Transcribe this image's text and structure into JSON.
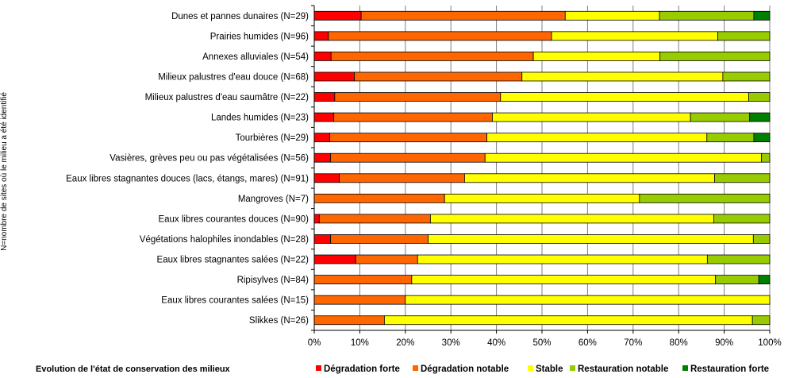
{
  "chart_data": {
    "type": "bar",
    "orientation": "horizontal",
    "stacked": true,
    "percent": true,
    "title": "",
    "ylabel": "N=nombre de sites où le milieu a été identifié",
    "caption": "Evolution  de l'état de conservation des milieux",
    "xlim": [
      0,
      100
    ],
    "xticks": [
      "0%",
      "10%",
      "20%",
      "30%",
      "40%",
      "50%",
      "60%",
      "70%",
      "80%",
      "90%",
      "100%"
    ],
    "legend_position": "bottom-right",
    "categories": [
      "Dunes et pannes dunaires (N=29)",
      "Prairies humides (N=96)",
      "Annexes alluviales (N=54)",
      "Milieux palustres d'eau douce (N=68)",
      "Milieux palustres d'eau saumâtre (N=22)",
      "Landes humides (N=23)",
      "Tourbières (N=29)",
      "Vasières, grèves peu ou pas végétalisées (N=56)",
      "Eaux libres stagnantes douces (lacs, étangs, mares) (N=91)",
      "Mangroves (N=7)",
      "Eaux libres courantes douces (N=90)",
      "Végétations halophiles inondables (N=28)",
      "Eaux libres stagnantes salées (N=22)",
      "Ripisylves (N=84)",
      "Eaux libres courantes salées (N=15)",
      "Slikkes (N=26)"
    ],
    "series": [
      {
        "name": "Dégradation forte",
        "color": "#FF0000",
        "values": [
          10.3,
          3.1,
          3.7,
          8.8,
          4.5,
          4.3,
          3.4,
          3.6,
          5.5,
          0,
          1.1,
          3.6,
          9.1,
          0,
          0,
          0
        ]
      },
      {
        "name": "Dégradation notable",
        "color": "#FF6600",
        "values": [
          44.8,
          49.0,
          44.4,
          36.8,
          36.4,
          34.8,
          34.5,
          33.9,
          27.5,
          28.6,
          24.4,
          21.4,
          13.6,
          21.4,
          20.0,
          15.4
        ]
      },
      {
        "name": "Stable",
        "color": "#FFFF00",
        "values": [
          20.7,
          36.5,
          27.8,
          44.1,
          54.5,
          43.5,
          48.3,
          60.7,
          54.9,
          42.8,
          62.2,
          71.4,
          63.6,
          66.7,
          80.0,
          80.8
        ]
      },
      {
        "name": "Restauration notable",
        "color": "#99CC00",
        "values": [
          20.7,
          11.4,
          24.1,
          10.3,
          4.6,
          13.0,
          10.3,
          1.8,
          12.1,
          28.6,
          12.3,
          3.6,
          13.7,
          9.5,
          0,
          3.8
        ]
      },
      {
        "name": "Restauration forte",
        "color": "#008000",
        "values": [
          3.5,
          0,
          0,
          0,
          0,
          4.4,
          3.5,
          0,
          0,
          0,
          0,
          0,
          0,
          2.4,
          0,
          0
        ]
      }
    ]
  }
}
